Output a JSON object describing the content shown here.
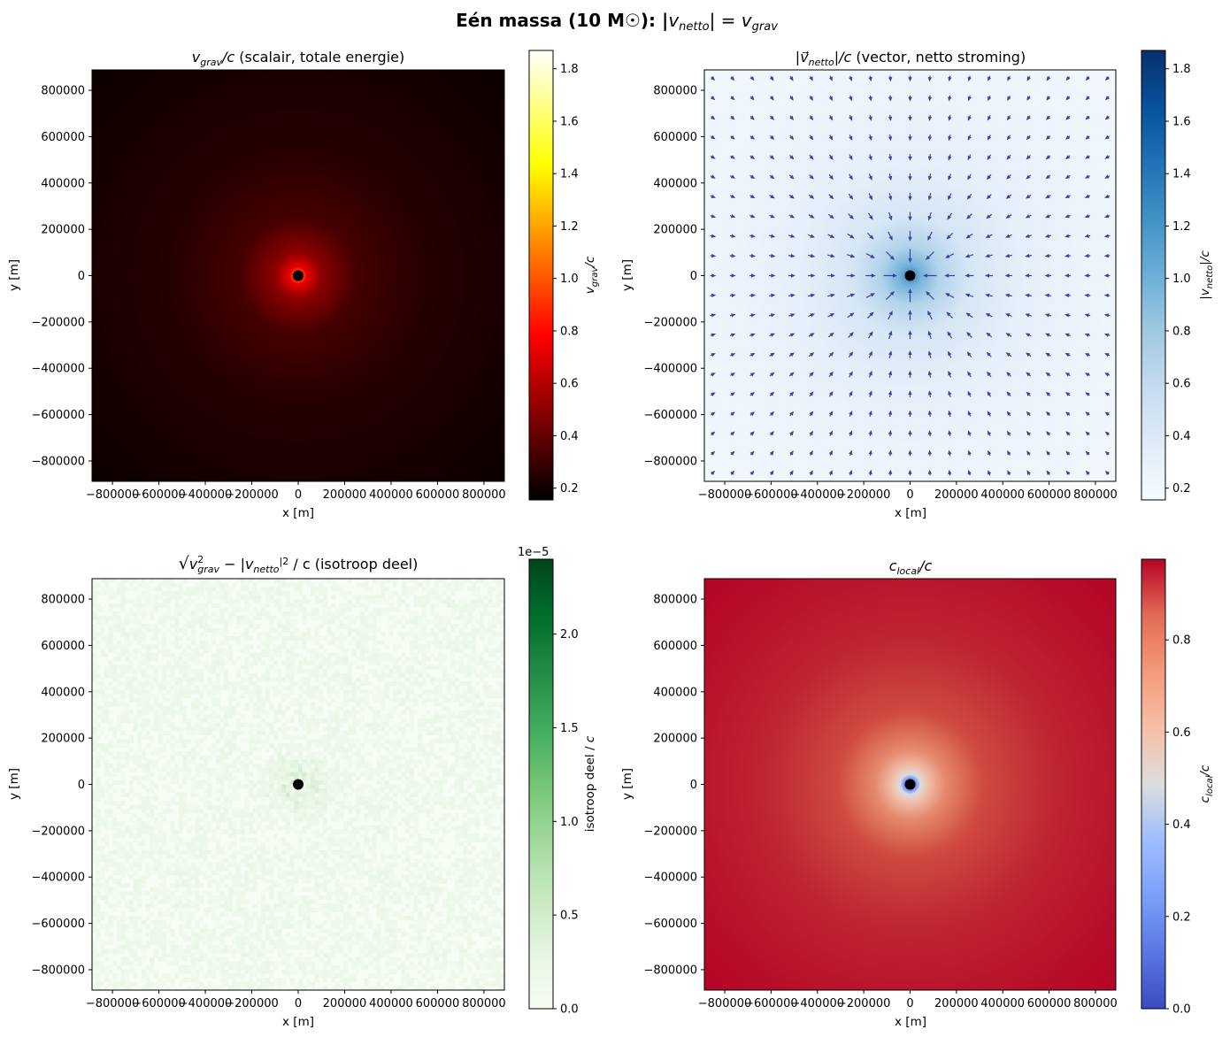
{
  "figure": {
    "suptitle": "Eén massa (10 M☉): |v_netto| = v_grav",
    "suptitle_parts": {
      "lead": "Eén massa (10 M☉): |",
      "v1": "v",
      "v1sub": "netto",
      "mid": "| = ",
      "v2": "v",
      "v2sub": "grav"
    }
  },
  "panels": [
    {
      "id": "vgrav",
      "title": "v_grav/c (scalair, totale energie)",
      "title_parts": {
        "sym": "v",
        "sub": "grav",
        "post": "/c",
        "text": " (scalair, totale energie)"
      },
      "xlabel": "x [m]",
      "ylabel": "y [m]",
      "cbar": {
        "label": "v_grav/c",
        "label_sym": "v",
        "label_sub": "grav",
        "label_post": "/c",
        "min": 0.155,
        "max": 1.87,
        "ticks": [
          0.2,
          0.4,
          0.6,
          0.8,
          1.0,
          1.2,
          1.4,
          1.6,
          1.8
        ],
        "tick_labels": [
          "0.2",
          "0.4",
          "0.6",
          "0.8",
          "1.0",
          "1.2",
          "1.4",
          "1.6",
          "1.8"
        ],
        "colormap": "hot",
        "offset": ""
      }
    },
    {
      "id": "vnetto",
      "title": "|v⃗_netto|/c (vector, netto stroming)",
      "title_parts": {
        "sym": "|v⃗",
        "sub": "netto",
        "post": "|/c",
        "text": " (vector, netto stroming)"
      },
      "xlabel": "x [m]",
      "ylabel": "y [m]",
      "cbar": {
        "label": "|v_netto|/c",
        "label_sym": "|v",
        "label_sub": "netto",
        "label_post": "|/c",
        "min": 0.155,
        "max": 1.87,
        "ticks": [
          0.2,
          0.4,
          0.6,
          0.8,
          1.0,
          1.2,
          1.4,
          1.6,
          1.8
        ],
        "tick_labels": [
          "0.2",
          "0.4",
          "0.6",
          "0.8",
          "1.0",
          "1.2",
          "1.4",
          "1.6",
          "1.8"
        ],
        "colormap": "Blues",
        "offset": ""
      }
    },
    {
      "id": "isotroop",
      "title": "√(v_grav² − |v_netto|²) / c (isotroop deel)",
      "title_parts": {
        "sqrt": "√",
        "a": "v",
        "asub": "grav",
        "asup": "2",
        "minus": " − |",
        "b": "v",
        "bsub": "netto",
        "bsup": "|2",
        "text": " / c (isotroop deel)"
      },
      "xlabel": "x [m]",
      "ylabel": "y [m]",
      "cbar": {
        "label": "isotroop deel / c",
        "label_sym": "isotroop deel / ",
        "label_sub": "",
        "label_post": "c",
        "min": 0.0,
        "max": 2.4,
        "ticks": [
          0.0,
          0.5,
          1.0,
          1.5,
          2.0
        ],
        "tick_labels": [
          "0.0",
          "0.5",
          "1.0",
          "1.5",
          "2.0"
        ],
        "colormap": "Greens",
        "offset": "1e−5"
      }
    },
    {
      "id": "clocal",
      "title": "c_local/c",
      "title_parts": {
        "sym": "c",
        "sub": "local",
        "post": "/c",
        "text": ""
      },
      "xlabel": "x [m]",
      "ylabel": "y [m]",
      "cbar": {
        "label": "c_local/c",
        "label_sym": "c",
        "label_sub": "local",
        "label_post": "/c",
        "min": 0.0,
        "max": 0.975,
        "ticks": [
          0.0,
          0.2,
          0.4,
          0.6,
          0.8
        ],
        "tick_labels": [
          "0.0",
          "0.2",
          "0.4",
          "0.6",
          "0.8"
        ],
        "colormap": "coolwarm",
        "offset": ""
      }
    }
  ],
  "chart_data": [
    {
      "type": "heatmap",
      "title": "v_grav/c (scalair, totale energie)",
      "xlabel": "x [m]",
      "ylabel": "y [m]",
      "xlim": [
        -888000,
        888000
      ],
      "ylim": [
        -888000,
        888000
      ],
      "x_ticks": [
        -800000,
        -600000,
        -400000,
        -200000,
        0,
        200000,
        400000,
        600000,
        800000
      ],
      "x_tick_labels": [
        "−800000",
        "−600000",
        "−400000",
        "−200000",
        "0",
        "200000",
        "400000",
        "600000",
        "800000"
      ],
      "y_ticks": [
        800000,
        600000,
        400000,
        200000,
        0,
        -200000,
        -400000,
        -600000,
        -800000
      ],
      "y_tick_labels": [
        "800000",
        "600000",
        "400000",
        "200000",
        "0",
        "−200000",
        "−400000",
        "−600000",
        "−800000"
      ],
      "colorbar_range": [
        0.155,
        1.87
      ],
      "field": "v_grav/c ∝ 1/√r, ≈0.2 at the corners, peak ≈1.87 at the mass",
      "mass_marker": {
        "x": 0,
        "y": 0
      }
    },
    {
      "type": "heatmap",
      "title": "|v⃗_netto|/c (vector, netto stroming)",
      "xlabel": "x [m]",
      "ylabel": "y [m]",
      "xlim": [
        -888000,
        888000
      ],
      "ylim": [
        -888000,
        888000
      ],
      "x_ticks": [
        -800000,
        -600000,
        -400000,
        -200000,
        0,
        200000,
        400000,
        600000,
        800000
      ],
      "x_tick_labels": [
        "−800000",
        "−600000",
        "−400000",
        "−200000",
        "0",
        "200000",
        "400000",
        "600000",
        "800000"
      ],
      "y_ticks": [
        800000,
        600000,
        400000,
        200000,
        0,
        -200000,
        -400000,
        -600000,
        -800000
      ],
      "y_tick_labels": [
        "800000",
        "600000",
        "400000",
        "200000",
        "0",
        "−200000",
        "−400000",
        "−600000",
        "−800000"
      ],
      "colorbar_range": [
        0.155,
        1.87
      ],
      "quiver": {
        "grid_n": 21,
        "spacing": 85000,
        "direction": "radially inward toward the mass",
        "color": "#3f3fa8"
      },
      "mass_marker": {
        "x": 0,
        "y": 0
      }
    },
    {
      "type": "heatmap",
      "title": "√(v_grav² − |v_netto|²) / c (isotroop deel)",
      "xlabel": "x [m]",
      "ylabel": "y [m]",
      "xlim": [
        -888000,
        888000
      ],
      "ylim": [
        -888000,
        888000
      ],
      "x_ticks": [
        -800000,
        -600000,
        -400000,
        -200000,
        0,
        200000,
        400000,
        600000,
        800000
      ],
      "x_tick_labels": [
        "−800000",
        "−600000",
        "−400000",
        "−200000",
        "0",
        "200000",
        "400000",
        "600000",
        "800000"
      ],
      "y_ticks": [
        800000,
        600000,
        400000,
        200000,
        0,
        -200000,
        -400000,
        -600000,
        -800000
      ],
      "y_tick_labels": [
        "800000",
        "600000",
        "400000",
        "200000",
        "0",
        "−200000",
        "−400000",
        "−600000",
        "−800000"
      ],
      "colorbar_range": [
        0.0,
        2.4e-05
      ],
      "field": "numerical noise ≈0 to 0.5e−5, slightly stronger near the mass",
      "mass_marker": {
        "x": 0,
        "y": 0
      }
    },
    {
      "type": "heatmap",
      "title": "c_local/c",
      "xlabel": "x [m]",
      "ylabel": "y [m]",
      "xlim": [
        -888000,
        888000
      ],
      "ylim": [
        -888000,
        888000
      ],
      "x_ticks": [
        -800000,
        -600000,
        -400000,
        -200000,
        0,
        200000,
        400000,
        600000,
        800000
      ],
      "x_tick_labels": [
        "−800000",
        "−600000",
        "−400000",
        "−200000",
        "0",
        "200000",
        "400000",
        "600000",
        "800000"
      ],
      "y_ticks": [
        800000,
        600000,
        400000,
        200000,
        0,
        -200000,
        -400000,
        -600000,
        -800000
      ],
      "y_tick_labels": [
        "800000",
        "600000",
        "400000",
        "200000",
        "0",
        "−200000",
        "−400000",
        "−600000",
        "−800000"
      ],
      "colorbar_range": [
        0.0,
        0.975
      ],
      "field": "c_local/c ≈0.97 at the edges, decreasing to 0 at the mass",
      "mass_marker": {
        "x": 0,
        "y": 0
      }
    }
  ]
}
